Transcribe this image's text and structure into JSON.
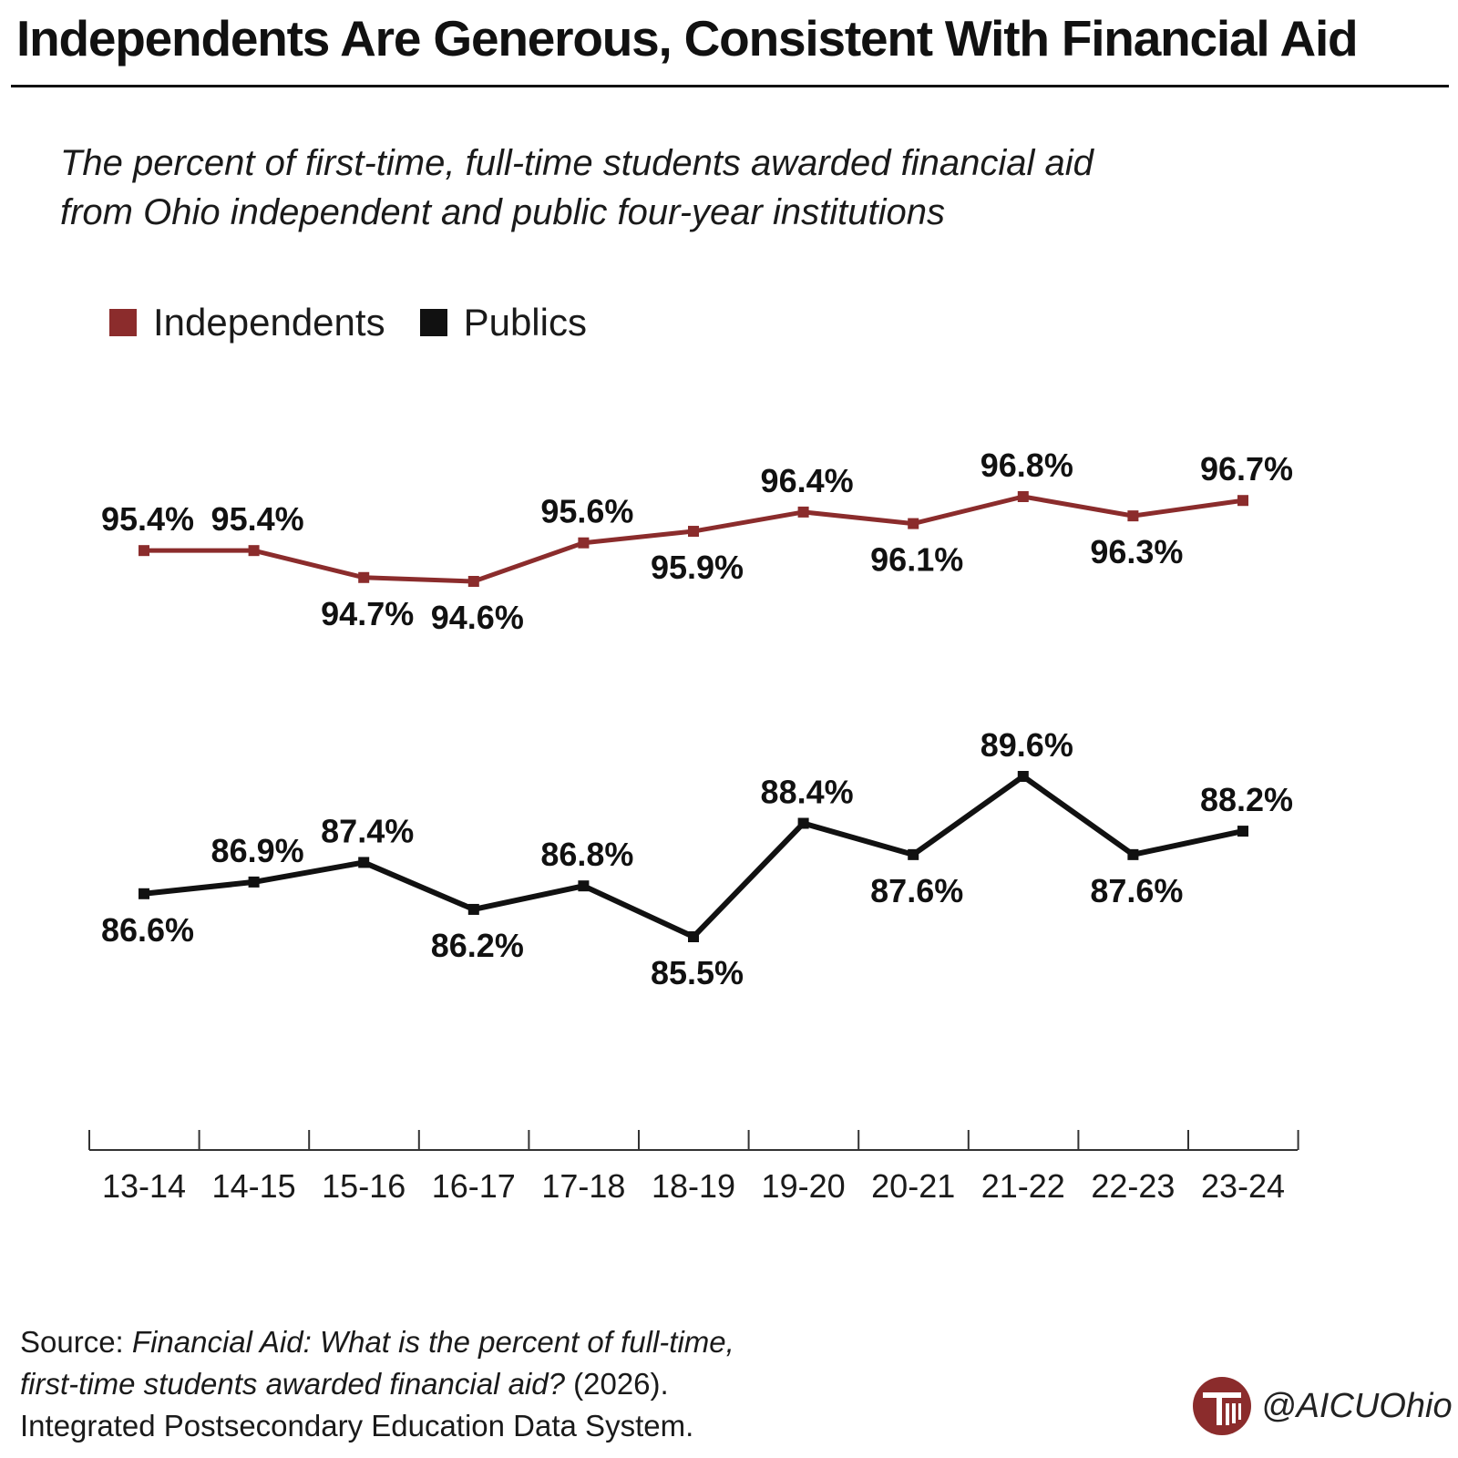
{
  "title": "Independents Are Generous, Consistent With Financial Aid",
  "subtitle": "The percent of first-time, full-time students awarded financial aid from Ohio independent and public four-year institutions",
  "source": {
    "prefix": "Source: ",
    "title_italic_1": "Financial Aid: What is the percent of full-time,",
    "title_italic_2": "first-time students awarded financial aid?",
    "year": " (2026).",
    "publisher": "Integrated Postsecondary Education Data System."
  },
  "handle": "@AICUOhio",
  "logo_icon": "aicu-ohio-logo-icon",
  "colors": {
    "independents": "#8b2c2c",
    "publics": "#111111"
  },
  "chart_data": {
    "type": "line",
    "categories": [
      "13-14",
      "14-15",
      "15-16",
      "16-17",
      "17-18",
      "18-19",
      "19-20",
      "20-21",
      "21-22",
      "22-23",
      "23-24"
    ],
    "legend_placement": "top-left",
    "grid": false,
    "series": [
      {
        "name": "Independents",
        "color": "#8b2c2c",
        "values": [
          95.4,
          95.4,
          94.7,
          94.6,
          95.6,
          95.9,
          96.4,
          96.1,
          96.8,
          96.3,
          96.7
        ],
        "labels": [
          "95.4%",
          "95.4%",
          "94.7%",
          "94.6%",
          "95.6%",
          "95.9%",
          "96.4%",
          "96.1%",
          "96.8%",
          "96.3%",
          "96.7%"
        ],
        "label_position": [
          "above",
          "above",
          "below",
          "below",
          "above",
          "below",
          "above",
          "below",
          "above",
          "below",
          "above"
        ]
      },
      {
        "name": "Publics",
        "color": "#111111",
        "values": [
          86.6,
          86.9,
          87.4,
          86.2,
          86.8,
          85.5,
          88.4,
          87.6,
          89.6,
          87.6,
          88.2
        ],
        "labels": [
          "86.6%",
          "86.9%",
          "87.4%",
          "86.2%",
          "86.8%",
          "85.5%",
          "88.4%",
          "87.6%",
          "89.6%",
          "87.6%",
          "88.2%"
        ],
        "label_position": [
          "below",
          "above",
          "above",
          "below",
          "above",
          "below",
          "above",
          "below",
          "above",
          "below",
          "above"
        ]
      }
    ]
  }
}
